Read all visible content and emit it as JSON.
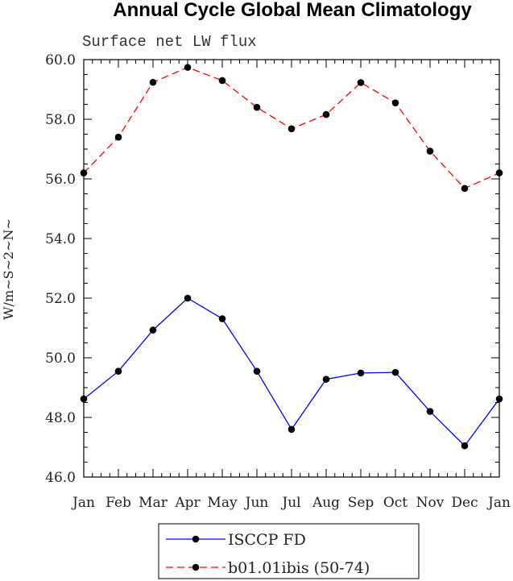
{
  "chart_data": {
    "type": "line",
    "title": "Annual Cycle Global Mean Climatology",
    "subtitle": "Surface net LW flux",
    "ylabel": "W/m~S~2~N~",
    "xlabel": "",
    "categories": [
      "Jan",
      "Feb",
      "Mar",
      "Apr",
      "May",
      "Jun",
      "Jul",
      "Aug",
      "Sep",
      "Oct",
      "Nov",
      "Dec",
      "Jan"
    ],
    "ylim": [
      46.0,
      60.0
    ],
    "yticks": [
      "46.0",
      "48.0",
      "50.0",
      "52.0",
      "54.0",
      "56.0",
      "58.0",
      "60.0"
    ],
    "ytick_values": [
      46,
      48,
      50,
      52,
      54,
      56,
      58,
      60
    ],
    "grid": false,
    "legend_position": "bottom-center",
    "series": [
      {
        "name": "ISCCP FD",
        "color": "#0000ff",
        "style": "solid",
        "values": [
          48.62,
          49.55,
          50.93,
          52.0,
          51.31,
          49.55,
          47.6,
          49.28,
          49.49,
          49.51,
          48.2,
          47.05,
          48.62
        ]
      },
      {
        "name": "b01.01ibis (50-74)",
        "color": "#ff0000",
        "style": "dashed",
        "values": [
          56.2,
          57.4,
          59.24,
          59.74,
          59.3,
          58.4,
          57.68,
          58.16,
          59.23,
          58.55,
          56.93,
          55.68,
          56.2
        ]
      }
    ]
  }
}
